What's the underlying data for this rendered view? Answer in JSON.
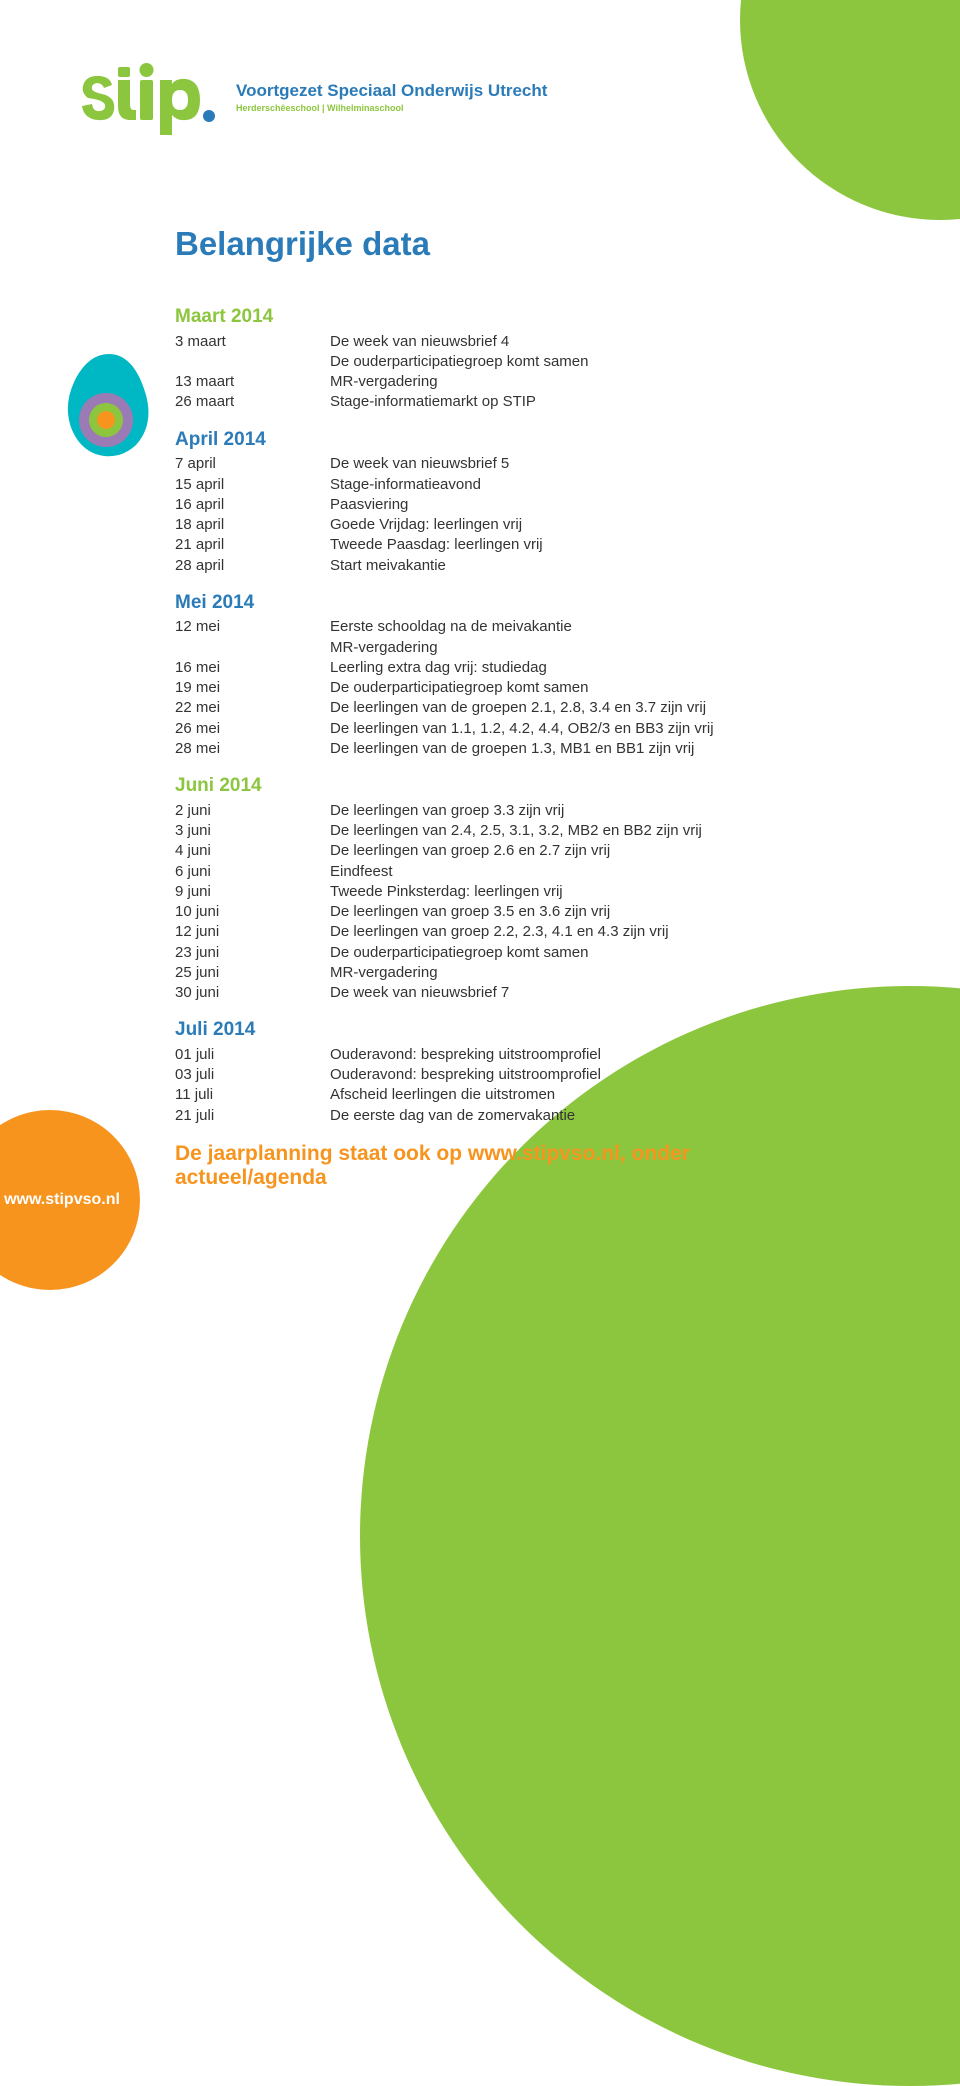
{
  "brand": {
    "name": "Stip",
    "subtitle": "Voortgezet Speciaal Onderwijs Utrecht",
    "schools": "Herderschêeschool | Wilhelminaschool",
    "website": "www.stipvso.nl",
    "colors": {
      "green": "#8cc63f",
      "blue": "#2b7bb9",
      "orange": "#f7941e",
      "cyan": "#00b8c4",
      "purple": "#9b7bb5",
      "text": "#333333"
    }
  },
  "title": "Belangrijke data",
  "sections": [
    {
      "heading": "Maart 2014",
      "color": "#8cc63f",
      "rows": [
        {
          "date": "3 maart",
          "desc": [
            "De week van nieuwsbrief 4",
            "De ouderparticipatiegroep komt samen"
          ]
        },
        {
          "date": "13 maart",
          "desc": [
            "MR-vergadering"
          ]
        },
        {
          "date": "26 maart",
          "desc": [
            "Stage-informatiemarkt op STIP"
          ]
        }
      ]
    },
    {
      "heading": "April 2014",
      "color": "#2b7bb9",
      "rows": [
        {
          "date": "7 april",
          "desc": [
            "De week van nieuwsbrief 5"
          ]
        },
        {
          "date": "15 april",
          "desc": [
            "Stage-informatieavond"
          ]
        },
        {
          "date": "16 april",
          "desc": [
            "Paasviering"
          ]
        },
        {
          "date": "18 april",
          "desc": [
            "Goede Vrijdag: leerlingen vrij"
          ]
        },
        {
          "date": "21 april",
          "desc": [
            "Tweede Paasdag: leerlingen vrij"
          ]
        },
        {
          "date": "28 april",
          "desc": [
            "Start meivakantie"
          ]
        }
      ]
    },
    {
      "heading": "Mei 2014",
      "color": "#2b7bb9",
      "rows": [
        {
          "date": "12 mei",
          "desc": [
            "Eerste schooldag na de meivakantie",
            "MR-vergadering"
          ]
        },
        {
          "date": "16 mei",
          "desc": [
            "Leerling extra dag vrij: studiedag"
          ]
        },
        {
          "date": "19 mei",
          "desc": [
            "De ouderparticipatiegroep komt samen"
          ]
        },
        {
          "date": "22 mei",
          "desc": [
            "De leerlingen van de groepen 2.1, 2.8, 3.4 en 3.7 zijn vrij"
          ]
        },
        {
          "date": "26 mei",
          "desc": [
            "De leerlingen van 1.1, 1.2, 4.2, 4.4, OB2/3 en BB3 zijn vrij"
          ]
        },
        {
          "date": "28 mei",
          "desc": [
            "De leerlingen van de groepen 1.3, MB1 en BB1 zijn vrij"
          ]
        }
      ]
    },
    {
      "heading": "Juni 2014",
      "color": "#8cc63f",
      "rows": [
        {
          "date": "2 juni",
          "desc": [
            "De leerlingen van groep 3.3 zijn vrij"
          ]
        },
        {
          "date": "3 juni",
          "desc": [
            "De leerlingen van 2.4, 2.5, 3.1, 3.2, MB2 en BB2 zijn vrij"
          ]
        },
        {
          "date": "4 juni",
          "desc": [
            "De leerlingen van groep 2.6 en 2.7 zijn vrij"
          ]
        },
        {
          "date": "6 juni",
          "desc": [
            "Eindfeest"
          ]
        },
        {
          "date": "9 juni",
          "desc": [
            "Tweede Pinksterdag: leerlingen vrij"
          ]
        },
        {
          "date": "10 juni",
          "desc": [
            "De leerlingen van groep 3.5 en 3.6 zijn vrij"
          ]
        },
        {
          "date": "12 juni",
          "desc": [
            "De leerlingen van groep 2.2, 2.3, 4.1 en 4.3 zijn vrij"
          ]
        },
        {
          "date": "23 juni",
          "desc": [
            "De ouderparticipatiegroep komt samen"
          ]
        },
        {
          "date": "25 juni",
          "desc": [
            "MR-vergadering"
          ]
        },
        {
          "date": "30 juni",
          "desc": [
            "De week van nieuwsbrief 7"
          ]
        }
      ]
    },
    {
      "heading": "Juli 2014",
      "color": "#2b7bb9",
      "rows": [
        {
          "date": "01 juli",
          "desc": [
            "Ouderavond: bespreking uitstroomprofiel"
          ]
        },
        {
          "date": "03 juli",
          "desc": [
            "Ouderavond: bespreking uitstroomprofiel"
          ]
        },
        {
          "date": "11 juli",
          "desc": [
            "Afscheid leerlingen die uitstromen"
          ]
        },
        {
          "date": "21 juli",
          "desc": [
            "De eerste dag van de zomervakantie"
          ]
        }
      ]
    }
  ],
  "footer": {
    "line1": "De jaarplanning staat ook op www.stipvso.nl, onder",
    "line2": "actueel/agenda"
  }
}
